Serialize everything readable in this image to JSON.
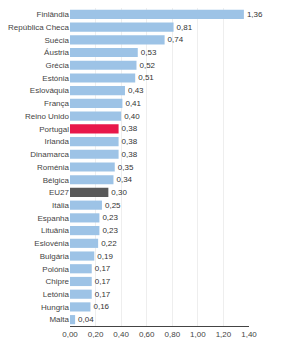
{
  "chart_data": {
    "type": "bar",
    "orientation": "horizontal",
    "categories": [
      "Malta",
      "Hungria",
      "Letónia",
      "Chipre",
      "Polónia",
      "Bulgária",
      "Eslovénia",
      "Lituânia",
      "Espanha",
      "Itália",
      "EU27",
      "Bélgica",
      "Roménia",
      "Dinamarca",
      "Irlanda",
      "Portugal",
      "Reino Unido",
      "França",
      "Eslováquia",
      "Estónia",
      "Grécia",
      "Áustria",
      "Suécia",
      "República Checa",
      "Finlândia"
    ],
    "values": [
      0.04,
      0.16,
      0.17,
      0.17,
      0.17,
      0.19,
      0.22,
      0.23,
      0.23,
      0.25,
      0.3,
      0.34,
      0.35,
      0.38,
      0.38,
      0.38,
      0.4,
      0.41,
      0.43,
      0.51,
      0.52,
      0.53,
      0.74,
      0.81,
      1.36
    ],
    "value_labels": [
      "0,04",
      "0,16",
      "0,17",
      "0,17",
      "0,17",
      "0,19",
      "0,22",
      "0,23",
      "0,23",
      "0,25",
      "0,30",
      "0,34",
      "0,35",
      "0,38",
      "0,38",
      "0,38",
      "0,40",
      "0,41",
      "0,43",
      "0,51",
      "0,52",
      "0,53",
      "0,74",
      "0,81",
      "1,36"
    ],
    "colors": [
      "#9dc3e6",
      "#9dc3e6",
      "#9dc3e6",
      "#9dc3e6",
      "#9dc3e6",
      "#9dc3e6",
      "#9dc3e6",
      "#9dc3e6",
      "#9dc3e6",
      "#9dc3e6",
      "#595959",
      "#9dc3e6",
      "#9dc3e6",
      "#9dc3e6",
      "#9dc3e6",
      "#e8174a",
      "#9dc3e6",
      "#9dc3e6",
      "#9dc3e6",
      "#9dc3e6",
      "#9dc3e6",
      "#9dc3e6",
      "#9dc3e6",
      "#9dc3e6",
      "#9dc3e6"
    ],
    "xlim": [
      0,
      1.4
    ],
    "xticks": [
      {
        "value": 0,
        "label": "0,00"
      },
      {
        "value": 0.2,
        "label": "0,20"
      },
      {
        "value": 0.4,
        "label": "0,40"
      },
      {
        "value": 0.6,
        "label": "0,60"
      },
      {
        "value": 0.8,
        "label": "0,80"
      },
      {
        "value": 1.0,
        "label": "1,00"
      },
      {
        "value": 1.2,
        "label": "1,20"
      },
      {
        "value": 1.4,
        "label": "1,40"
      }
    ],
    "grid": true,
    "data_labels": true
  }
}
